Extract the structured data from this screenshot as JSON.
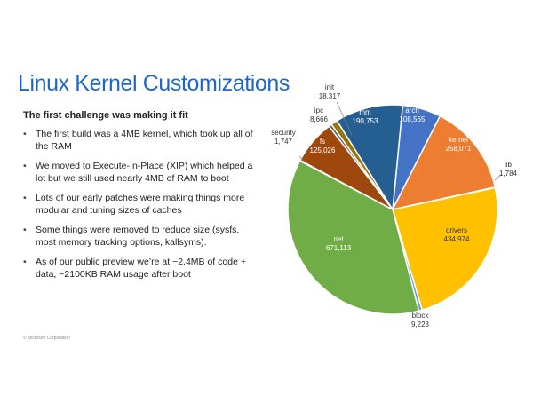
{
  "slide": {
    "title": "Linux Kernel Customizations",
    "subtitle": "The first challenge was making it fit",
    "bullets": [
      "The first build was a 4MB kernel, which took up all of the RAM",
      "We moved to Execute-In-Place (XIP) which helped a lot but we still used nearly 4MB of RAM to boot",
      "Lots of our early patches were making things more modular and tuning sizes of caches",
      "Some things were removed to reduce size (sysfs, most memory tracking options, kallsyms).",
      "As of our public preview we’re at ~2.4MB of code + data, ~2100KB RAM usage after boot"
    ],
    "footer": "© Microsoft Corporation"
  },
  "chart_data": {
    "type": "pie",
    "title": "",
    "slices": [
      {
        "label": "arch",
        "value": 108565,
        "value_text": "108,565",
        "color": "#4472c4"
      },
      {
        "label": "kernel",
        "value": 258071,
        "value_text": "258,071",
        "color": "#ed7d31"
      },
      {
        "label": "lib",
        "value": 1784,
        "value_text": "1,784",
        "color": "#a5a5a5"
      },
      {
        "label": "drivers",
        "value": 434974,
        "value_text": "434,974",
        "color": "#ffc000"
      },
      {
        "label": "block",
        "value": 9223,
        "value_text": "9,223",
        "color": "#5b9bd5"
      },
      {
        "label": "net",
        "value": 671113,
        "value_text": "671,113",
        "color": "#70ad47"
      },
      {
        "label": "security",
        "value": 1747,
        "value_text": "1,747",
        "color": "#264478"
      },
      {
        "label": "fs",
        "value": 125026,
        "value_text": "125,026",
        "color": "#9e480e"
      },
      {
        "label": "ipc",
        "value": 8666,
        "value_text": "8,666",
        "color": "#636363"
      },
      {
        "label": "init",
        "value": 18317,
        "value_text": "18,317",
        "color": "#997300"
      },
      {
        "label": "mm",
        "value": 190753,
        "value_text": "190,753",
        "color": "#255e91"
      }
    ]
  }
}
